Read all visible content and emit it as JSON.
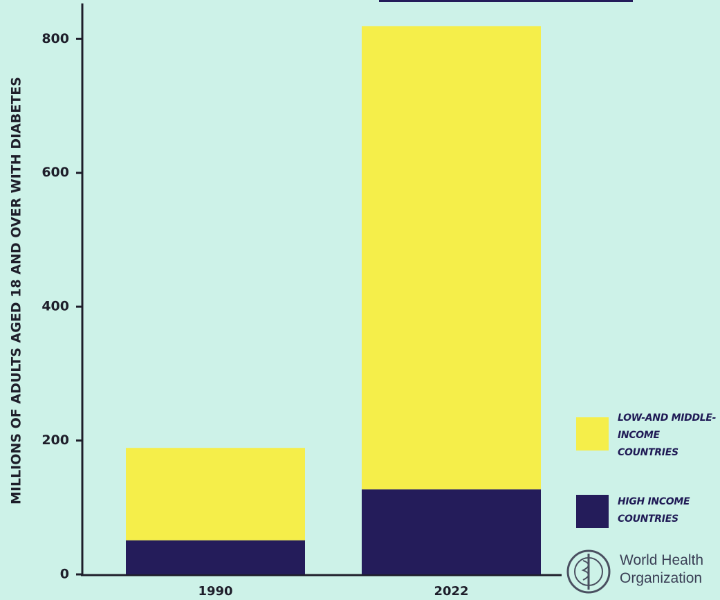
{
  "chart_data": {
    "type": "stacked_bar",
    "y_label": "MILLIONS OF ADULTS AGED 18 AND OVER WITH DIABETES",
    "categories": [
      "1990",
      "2022"
    ],
    "series": [
      {
        "name": "HIGH INCOME COUNTRIES",
        "color": "#241c5a",
        "values": [
          51,
          127
        ]
      },
      {
        "name": "LOW-AND MIDDLE-INCOME COUNTRIES",
        "color": "#f5ee4a",
        "values": [
          138,
          692
        ]
      }
    ],
    "ylim": [
      0,
      853
    ],
    "yticks": [
      0,
      200,
      400,
      600,
      800
    ]
  },
  "organization": "World Health Organization"
}
